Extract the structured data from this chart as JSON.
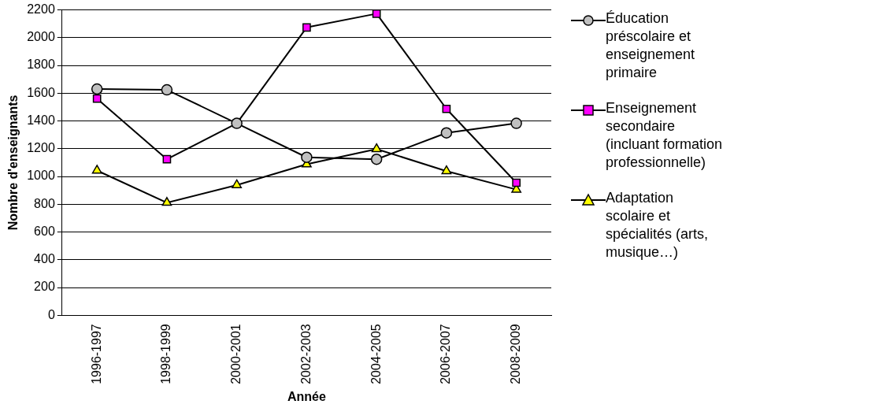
{
  "chart_data": {
    "type": "line",
    "xlabel": "Année",
    "ylabel": "Nombre d'enseignants",
    "categories": [
      "1996-1997",
      "1998-1999",
      "2000-2001",
      "2002-2003",
      "2004-2005",
      "2006-2007",
      "2008-2009"
    ],
    "series": [
      {
        "name": "Éducation préscolaire et enseignement primaire",
        "color": "#c0c0c0",
        "marker": "circle",
        "values": [
          1630,
          1624,
          1383,
          1138,
          1124,
          1314,
          1383
        ]
      },
      {
        "name": "Enseignement secondaire (incluant formation professionnelle)",
        "color": "#ff00ff",
        "marker": "square",
        "values": [
          1561,
          1124,
          1383,
          2074,
          2173,
          1487,
          955
        ]
      },
      {
        "name": "Adaptation scolaire et spécialités (arts, musique…)",
        "color": "#ffff00",
        "marker": "triangle",
        "values": [
          1043,
          811,
          938,
          1088,
          1198,
          1039,
          906
        ]
      }
    ],
    "ylim": [
      0,
      2200
    ],
    "yticks": [
      0,
      200,
      400,
      600,
      800,
      1000,
      1200,
      1400,
      1600,
      1800,
      2000,
      2200
    ],
    "grid": "y",
    "legend": "right",
    "line_style": "solid"
  }
}
